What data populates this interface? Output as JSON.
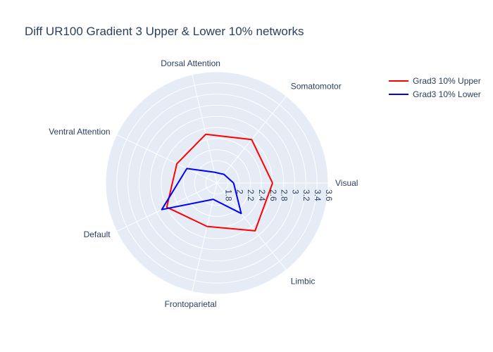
{
  "chart_data": {
    "type": "radar",
    "title": "Diff UR100 Gradient 3 Upper & Lower 10% networks",
    "categories": [
      "Visual",
      "Somatomotor",
      "Dorsal Attention",
      "Ventral Attention",
      "Default",
      "Frontoparietal",
      "Limbic"
    ],
    "radial_range": [
      1.6,
      3.6
    ],
    "radial_ticks": [
      "1.8",
      "2",
      "2.2",
      "2.4",
      "2.6",
      "2.8",
      "3",
      "3.2",
      "3.4",
      "3.6"
    ],
    "radial_tick_values": [
      1.8,
      2.0,
      2.2,
      2.4,
      2.6,
      2.8,
      3.0,
      3.2,
      3.4,
      3.6
    ],
    "grid": true,
    "legend_position": "top-right",
    "series": [
      {
        "name": "Grad3 10% Upper",
        "color": "#ff0000",
        "values": [
          2.6,
          2.6,
          2.5,
          2.4,
          2.6,
          2.4,
          2.7
        ]
      },
      {
        "name": "Grad3 10% Lower",
        "color": "#0000ff",
        "values": [
          1.9,
          1.8,
          1.8,
          2.2,
          2.7,
          1.9,
          2.3
        ]
      }
    ]
  }
}
